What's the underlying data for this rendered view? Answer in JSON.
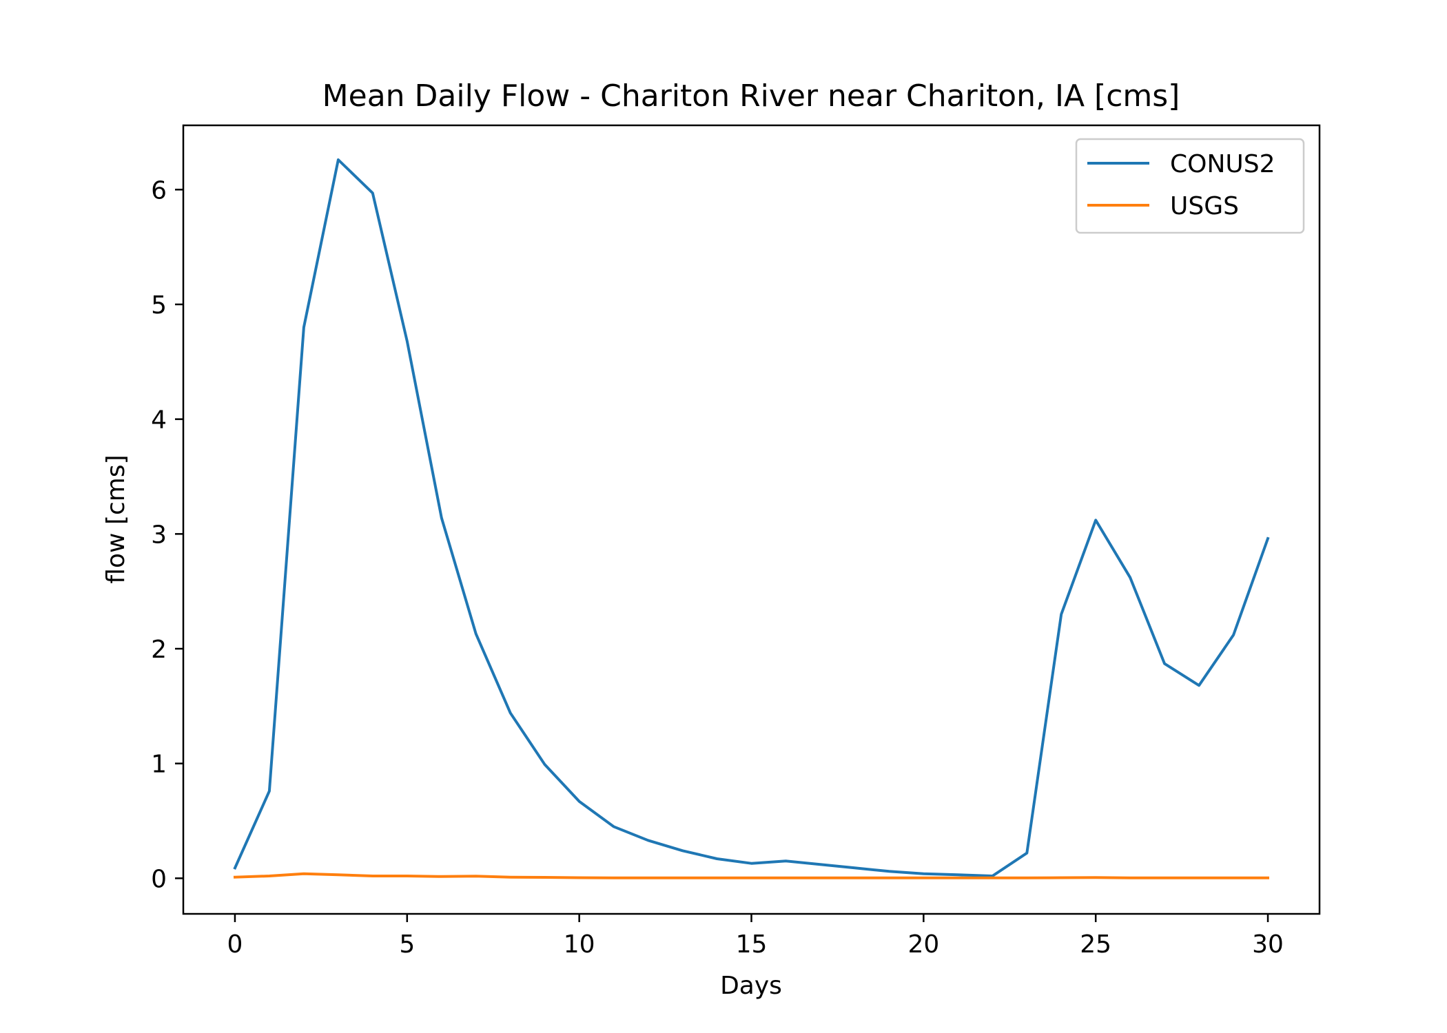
{
  "chart_data": {
    "type": "line",
    "title": "Mean Daily Flow - Chariton River near Chariton, IA [cms]",
    "xlabel": "Days",
    "ylabel": "flow [cms]",
    "xlim": [
      -1.5,
      31.5
    ],
    "ylim": [
      -0.31,
      6.56
    ],
    "xticks": [
      0,
      5,
      10,
      15,
      20,
      25,
      30
    ],
    "yticks": [
      0,
      1,
      2,
      3,
      4,
      5,
      6
    ],
    "grid": false,
    "legend_position": "top-right",
    "x": [
      0,
      1,
      2,
      3,
      4,
      5,
      6,
      7,
      8,
      9,
      10,
      11,
      12,
      13,
      14,
      15,
      16,
      17,
      18,
      19,
      20,
      21,
      22,
      23,
      24,
      25,
      26,
      27,
      28,
      29,
      30
    ],
    "series": [
      {
        "name": "CONUS2",
        "color": "#1f77b4",
        "values": [
          0.09,
          0.76,
          4.8,
          6.26,
          5.97,
          4.68,
          3.14,
          2.13,
          1.44,
          0.99,
          0.67,
          0.45,
          0.33,
          0.24,
          0.17,
          0.13,
          0.15,
          0.12,
          0.09,
          0.06,
          0.04,
          0.03,
          0.02,
          0.22,
          2.3,
          3.12,
          2.62,
          1.87,
          1.68,
          2.12,
          2.96
        ]
      },
      {
        "name": "USGS",
        "color": "#ff7f0e",
        "values": [
          0.01,
          0.02,
          0.04,
          0.03,
          0.02,
          0.02,
          0.015,
          0.018,
          0.01,
          0.008,
          0.005,
          0.004,
          0.004,
          0.003,
          0.003,
          0.003,
          0.003,
          0.003,
          0.003,
          0.003,
          0.003,
          0.003,
          0.003,
          0.003,
          0.005,
          0.006,
          0.004,
          0.004,
          0.004,
          0.004,
          0.004
        ]
      }
    ]
  }
}
